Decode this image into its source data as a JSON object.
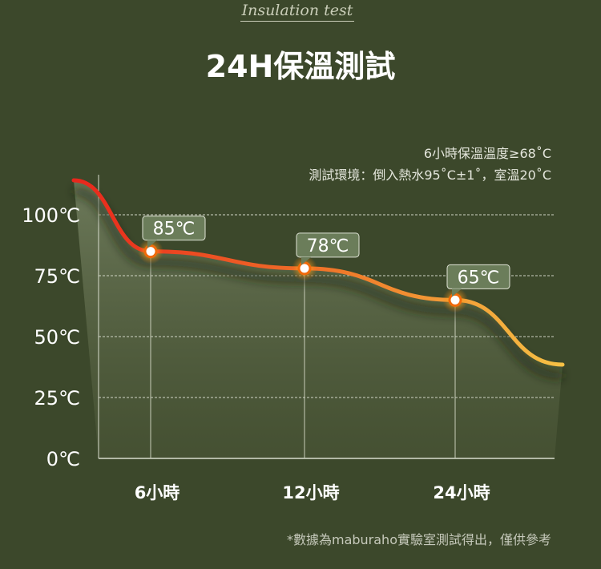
{
  "subtitle": "Insulation test",
  "title": "24H保溫測試",
  "notes": [
    "6小時保溫溫度≥68˚C",
    "測試環境：倒入熱水95˚C±1˚，室溫20˚C"
  ],
  "footnote": "*數據為maburaho實驗室測試得出，僅供參考",
  "chart_data": {
    "type": "line",
    "categories": [
      "6小時",
      "12小時",
      "24小時"
    ],
    "values": [
      85,
      78,
      65
    ],
    "data_labels": [
      "85℃",
      "78℃",
      "65℃"
    ],
    "yticks": [
      "0℃",
      "25℃",
      "50℃",
      "75℃",
      "100℃"
    ],
    "ytick_values": [
      0,
      25,
      50,
      75,
      100
    ],
    "ylim": [
      0,
      100
    ],
    "grid": true,
    "colors": {
      "line_start": "#e8261c",
      "line_mid": "#f07a2a",
      "line_end": "#f6c145",
      "label_bg": "#6b7d5a",
      "grid": "#cfd4c4"
    }
  }
}
